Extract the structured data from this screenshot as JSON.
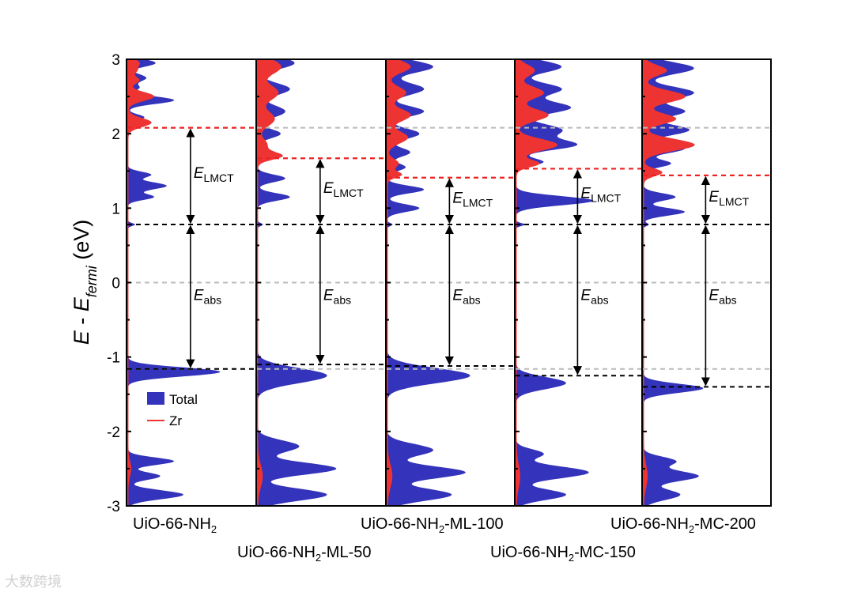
{
  "chart_data": {
    "type": "area",
    "title": "",
    "ylabel_parts": {
      "e": "E",
      "sep": " - ",
      "ef": "E",
      "sub": "fermi",
      "unit": " (eV)"
    },
    "ylim": [
      -3,
      3
    ],
    "yticks": [
      {
        "value": 3,
        "label": "3"
      },
      {
        "value": 2,
        "label": "2"
      },
      {
        "value": 1,
        "label": "1"
      },
      {
        "value": 0,
        "label": "0"
      },
      {
        "value": -1,
        "label": "-1"
      },
      {
        "value": -2,
        "label": "-2"
      },
      {
        "value": -3,
        "label": "-3"
      }
    ],
    "legend": {
      "position": "lower-left of first panel",
      "entries": [
        {
          "name": "Total",
          "color": "#3333bb",
          "style": "patch"
        },
        {
          "name": "Zr",
          "color": "#ee3333",
          "style": "line"
        }
      ]
    },
    "reference_lines": {
      "fermi_level": 0,
      "ref_cbm": 2.08,
      "ref_vbm": -1.16,
      "homo_nh2": 0.78
    },
    "panels": [
      {
        "name": "UiO-66-NH2",
        "label_base": "UiO-66-NH",
        "label_sub": "2",
        "label_suffix": "",
        "vbm": -1.16,
        "cbm": 2.08,
        "homo": 0.78,
        "E_abs": 1.94,
        "E_LMCT": 1.3,
        "total_peaks": [
          [
            2.95,
            0.3,
            0.05
          ],
          [
            2.75,
            0.2,
            0.05
          ],
          [
            2.62,
            0.12,
            0.04
          ],
          [
            2.45,
            0.5,
            0.05
          ],
          [
            2.22,
            0.18,
            0.04
          ],
          [
            1.45,
            0.25,
            0.04
          ],
          [
            1.3,
            0.42,
            0.05
          ],
          [
            1.15,
            0.28,
            0.04
          ],
          [
            0.78,
            0.08,
            0.02
          ],
          [
            -1.2,
            1.0,
            0.06
          ],
          [
            -2.4,
            0.5,
            0.05
          ],
          [
            -2.6,
            0.35,
            0.05
          ],
          [
            -2.85,
            0.6,
            0.06
          ]
        ],
        "zr_peaks": [
          [
            2.95,
            0.12,
            0.05
          ],
          [
            2.85,
            0.08,
            0.04
          ],
          [
            2.72,
            0.12,
            0.05
          ],
          [
            2.5,
            0.28,
            0.06
          ],
          [
            2.15,
            0.25,
            0.06
          ],
          [
            -2.5,
            0.03,
            0.1
          ]
        ]
      },
      {
        "name": "UiO-66-NH2-ML-50",
        "label_base": "UiO-66-NH",
        "label_sub": "2",
        "label_suffix": "-ML-50",
        "vbm": -1.1,
        "cbm": 1.67,
        "homo": 0.78,
        "E_abs": 1.88,
        "E_LMCT": 0.89,
        "total_peaks": [
          [
            2.95,
            0.4,
            0.08
          ],
          [
            2.6,
            0.35,
            0.08
          ],
          [
            2.3,
            0.3,
            0.08
          ],
          [
            2.0,
            0.25,
            0.06
          ],
          [
            1.75,
            0.1,
            0.05
          ],
          [
            1.4,
            0.3,
            0.05
          ],
          [
            1.15,
            0.35,
            0.05
          ],
          [
            0.78,
            0.06,
            0.02
          ],
          [
            -1.25,
            0.75,
            0.1
          ],
          [
            -2.2,
            0.45,
            0.08
          ],
          [
            -2.5,
            0.85,
            0.08
          ],
          [
            -2.85,
            0.75,
            0.08
          ]
        ],
        "zr_peaks": [
          [
            2.9,
            0.25,
            0.1
          ],
          [
            2.55,
            0.22,
            0.1
          ],
          [
            2.2,
            0.18,
            0.1
          ],
          [
            1.85,
            0.1,
            0.08
          ],
          [
            1.7,
            0.25,
            0.05
          ],
          [
            -2.6,
            0.05,
            0.15
          ]
        ]
      },
      {
        "name": "UiO-66-NH2-ML-100",
        "label_base": "UiO-66-NH",
        "label_sub": "2",
        "label_suffix": "-ML-100",
        "vbm": -1.12,
        "cbm": 1.41,
        "homo": 0.78,
        "E_abs": 1.9,
        "E_LMCT": 0.63,
        "total_peaks": [
          [
            2.9,
            0.5,
            0.08
          ],
          [
            2.6,
            0.4,
            0.08
          ],
          [
            2.3,
            0.4,
            0.07
          ],
          [
            2.0,
            0.35,
            0.07
          ],
          [
            1.75,
            0.25,
            0.06
          ],
          [
            1.55,
            0.2,
            0.05
          ],
          [
            1.25,
            0.4,
            0.05
          ],
          [
            1.0,
            0.35,
            0.05
          ],
          [
            0.78,
            0.06,
            0.02
          ],
          [
            -1.25,
            0.9,
            0.1
          ],
          [
            -2.25,
            0.5,
            0.08
          ],
          [
            -2.55,
            0.85,
            0.08
          ],
          [
            -2.85,
            0.7,
            0.08
          ]
        ],
        "zr_peaks": [
          [
            2.9,
            0.25,
            0.08
          ],
          [
            2.55,
            0.2,
            0.08
          ],
          [
            2.25,
            0.25,
            0.08
          ],
          [
            1.95,
            0.22,
            0.08
          ],
          [
            1.6,
            0.12,
            0.06
          ],
          [
            1.45,
            0.15,
            0.04
          ],
          [
            -2.6,
            0.05,
            0.15
          ]
        ]
      },
      {
        "name": "UiO-66-NH2-MC-150",
        "label_base": "UiO-66-NH",
        "label_sub": "2",
        "label_suffix": "-MC-150",
        "vbm": -1.25,
        "cbm": 1.53,
        "homo": 0.78,
        "E_abs": 2.03,
        "E_LMCT": 0.75,
        "total_peaks": [
          [
            2.9,
            0.5,
            0.08
          ],
          [
            2.6,
            0.5,
            0.08
          ],
          [
            2.35,
            0.6,
            0.08
          ],
          [
            2.05,
            0.5,
            0.08
          ],
          [
            1.85,
            0.65,
            0.07
          ],
          [
            1.62,
            0.3,
            0.05
          ],
          [
            1.1,
            0.85,
            0.06
          ],
          [
            0.78,
            0.1,
            0.02
          ],
          [
            -1.35,
            0.55,
            0.08
          ],
          [
            -2.3,
            0.3,
            0.06
          ],
          [
            -2.55,
            0.8,
            0.08
          ],
          [
            -2.85,
            0.55,
            0.07
          ]
        ],
        "zr_peaks": [
          [
            2.85,
            0.2,
            0.08
          ],
          [
            2.55,
            0.3,
            0.08
          ],
          [
            2.25,
            0.35,
            0.08
          ],
          [
            1.85,
            0.45,
            0.08
          ],
          [
            1.6,
            0.25,
            0.05
          ],
          [
            -2.6,
            0.04,
            0.15
          ]
        ]
      },
      {
        "name": "UiO-66-NH2-MC-200",
        "label_base": "UiO-66-NH",
        "label_sub": "2",
        "label_suffix": "-MC-200",
        "vbm": -1.4,
        "cbm": 1.44,
        "homo": 0.78,
        "E_abs": 2.18,
        "E_LMCT": 0.66,
        "total_peaks": [
          [
            2.88,
            0.55,
            0.08
          ],
          [
            2.55,
            0.55,
            0.08
          ],
          [
            2.3,
            0.45,
            0.07
          ],
          [
            2.05,
            0.5,
            0.07
          ],
          [
            1.8,
            0.45,
            0.06
          ],
          [
            1.6,
            0.3,
            0.05
          ],
          [
            1.15,
            0.35,
            0.05
          ],
          [
            0.95,
            0.45,
            0.05
          ],
          [
            0.78,
            0.06,
            0.02
          ],
          [
            -1.42,
            0.65,
            0.06
          ],
          [
            -2.4,
            0.35,
            0.06
          ],
          [
            -2.6,
            0.6,
            0.07
          ],
          [
            -2.85,
            0.4,
            0.07
          ]
        ],
        "zr_peaks": [
          [
            2.85,
            0.25,
            0.07
          ],
          [
            2.5,
            0.45,
            0.08
          ],
          [
            2.2,
            0.35,
            0.07
          ],
          [
            1.85,
            0.55,
            0.08
          ],
          [
            1.48,
            0.2,
            0.05
          ],
          [
            -2.6,
            0.04,
            0.15
          ]
        ]
      }
    ],
    "annotation_labels": {
      "lmct_main": "E",
      "lmct_sub": "LMCT",
      "abs_main": "E",
      "abs_sub": "abs"
    }
  },
  "watermark": "大数跨境",
  "colors": {
    "total": "#3333bb",
    "zr": "#ee3333",
    "cbm_line": "#ee2222",
    "black_line": "#000000",
    "ref_line": "#bbbbbb"
  }
}
